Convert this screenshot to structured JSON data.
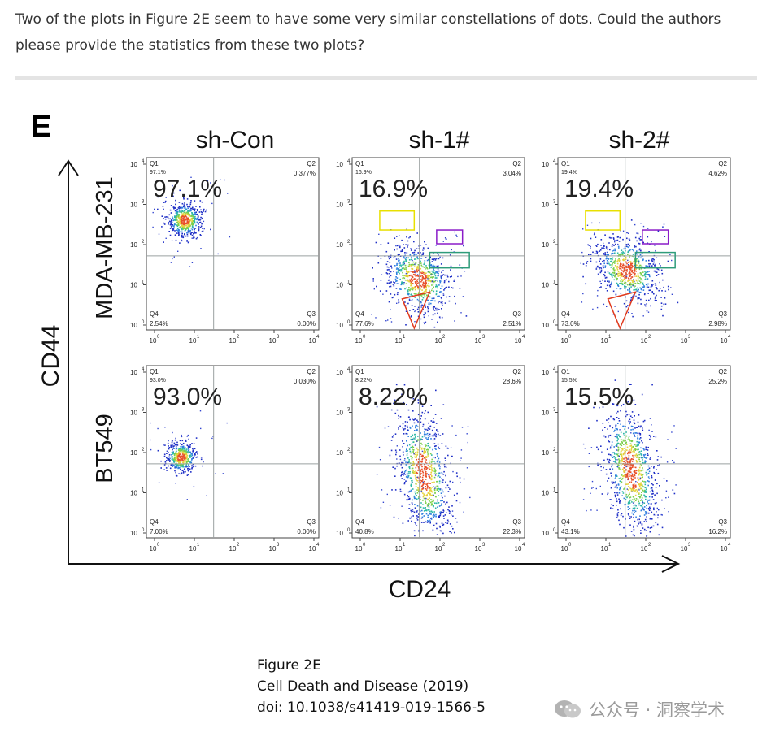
{
  "question": "Two of the plots in Figure 2E seem to have some very similar constellations of dots. Could the authors please provide the statistics from these two plots?",
  "figure": {
    "panel_letter": "E",
    "columns": [
      "sh-Con",
      "sh-1#",
      "sh-2#"
    ],
    "rows": [
      "MDA-MB-231",
      "BT549"
    ],
    "y_axis_label": "CD44",
    "x_axis_label": "CD24",
    "tick_labels": [
      "10",
      "10",
      "10",
      "10",
      "10"
    ],
    "tick_exponents": [
      "0",
      "1",
      "2",
      "3",
      "4"
    ],
    "quadrant_names": [
      "Q1",
      "Q2",
      "Q3",
      "Q4"
    ],
    "plots": [
      {
        "row": "MDA-MB-231",
        "col": "sh-Con",
        "big": "97.1%",
        "q1": "97.1%",
        "q2": "0.377%",
        "q3": "0.00%",
        "q4": "2.54%"
      },
      {
        "row": "MDA-MB-231",
        "col": "sh-1#",
        "big": "16.9%",
        "q1": "16.9%",
        "q2": "3.04%",
        "q3": "2.51%",
        "q4": "77.6%"
      },
      {
        "row": "MDA-MB-231",
        "col": "sh-2#",
        "big": "19.4%",
        "q1": "19.4%",
        "q2": "4.62%",
        "q3": "2.98%",
        "q4": "73.0%"
      },
      {
        "row": "BT549",
        "col": "sh-Con",
        "big": "93.0%",
        "q1": "93.0%",
        "q2": "0.030%",
        "q3": "0.00%",
        "q4": "7.00%"
      },
      {
        "row": "BT549",
        "col": "sh-1#",
        "big": "8.22%",
        "q1": "8.22%",
        "q2": "28.6%",
        "q3": "22.3%",
        "q4": "40.8%"
      },
      {
        "row": "BT549",
        "col": "sh-2#",
        "big": "15.5%",
        "q1": "15.5%",
        "q2": "25.2%",
        "q3": "16.2%",
        "q4": "43.1%"
      }
    ]
  },
  "caption": {
    "line1": "Figure 2E",
    "line2": "Cell Death and Disease (2019)",
    "line3": "doi: 10.1038/s41419-019-1566-5"
  },
  "watermark": "公众号 · 洞察学术",
  "colors": {
    "yellow_box": "#e8e000",
    "purple_box": "#8a1cc8",
    "green_box": "#2e9c7a",
    "red_box": "#e03a1e"
  }
}
